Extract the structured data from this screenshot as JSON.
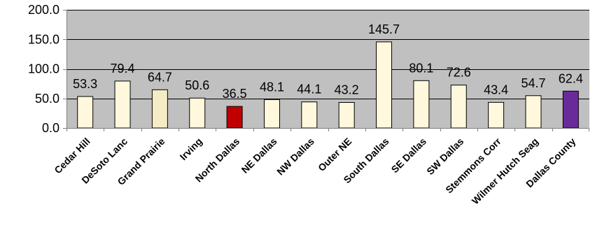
{
  "chart_data": {
    "type": "bar",
    "title": "",
    "xlabel": "",
    "ylabel": "",
    "categories": [
      "Cedar Hill",
      "DeSoto Lanc",
      "Grand Prairie",
      "Irving",
      "North Dallas",
      "NE Dallas",
      "NW Dallas",
      "Outer NE",
      "South Dallas",
      "SE Dallas",
      "SW Dallas",
      "Stemmons Corr",
      "Wilmer Hutch Seag",
      "Dallas County"
    ],
    "values": [
      53.3,
      79.4,
      64.7,
      50.6,
      36.5,
      48.1,
      44.1,
      43.2,
      145.7,
      80.1,
      72.6,
      43.4,
      54.7,
      62.4
    ],
    "value_labels": [
      "53.3",
      "79.4",
      "64.7",
      "50.6",
      "36.5",
      "48.1",
      "44.1",
      "43.2",
      "145.7",
      "80.1",
      "72.6",
      "43.4",
      "54.7",
      "62.4"
    ],
    "bar_colors": [
      "#fff8dc",
      "#fff8dc",
      "#f5ecc5",
      "#fff8dc",
      "#c00000",
      "#fff8dc",
      "#fff8dc",
      "#fff8dc",
      "#fff8dc",
      "#fff8dc",
      "#fff8dc",
      "#fff8dc",
      "#fff8dc",
      "#6a2b9a"
    ],
    "yticks": [
      0,
      50,
      100,
      150,
      200
    ],
    "ytick_labels": [
      "0.0",
      "50.0",
      "100.0",
      "150.0",
      "200.0"
    ],
    "ylim": [
      0,
      200
    ],
    "grid": true,
    "legend": "none",
    "plot_background": "#c0c0c0",
    "gridline_color": "#000000"
  }
}
